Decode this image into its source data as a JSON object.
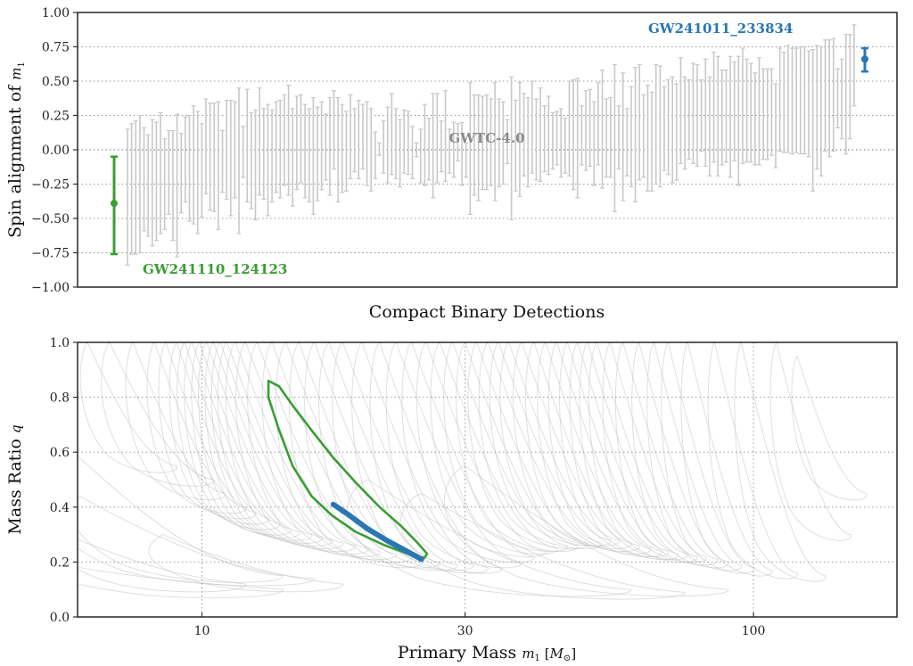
{
  "chart_data": [
    {
      "type": "scatter",
      "subtype": "errorbar",
      "title": "",
      "xlabel": "Compact Binary Detections",
      "ylabel": "Spin alignment of",
      "ylabel_symbol": "m",
      "ylabel_sub": "1",
      "ylim": [
        -1.0,
        1.0
      ],
      "yticks": [
        "−1.00",
        "−0.75",
        "−0.50",
        "−0.25",
        "0.00",
        "0.25",
        "0.50",
        "0.75",
        "1.00"
      ],
      "ytick_values": [
        -1.0,
        -0.75,
        -0.5,
        -0.25,
        0.0,
        0.25,
        0.5,
        0.75,
        1.0
      ],
      "grid": "horizontal-dotted",
      "catalog_label": "GWTC-4.0",
      "catalog_color": "#c8c8c8",
      "highlight_low": {
        "name": "GW241110_124123",
        "color": "#3a9c35",
        "median": -0.39,
        "interval": [
          -0.76,
          -0.05
        ]
      },
      "highlight_high": {
        "name": "GW241011_233834",
        "color": "#2a76b4",
        "median": 0.66,
        "interval": [
          0.57,
          0.74
        ]
      },
      "catalog_intervals": [
        [
          -0.84,
          0.15
        ],
        [
          -0.76,
          0.19
        ],
        [
          -0.76,
          0.21
        ],
        [
          -0.75,
          0.25
        ],
        [
          -0.59,
          0.16
        ],
        [
          -0.63,
          0.11
        ],
        [
          -0.7,
          0.22
        ],
        [
          -0.66,
          0.2
        ],
        [
          -0.61,
          0.27
        ],
        [
          -0.58,
          0.08
        ],
        [
          -0.47,
          0.14
        ],
        [
          -0.66,
          0.14
        ],
        [
          -0.78,
          0.26
        ],
        [
          -0.46,
          0.12
        ],
        [
          -0.38,
          0.24
        ],
        [
          -0.52,
          0.25
        ],
        [
          -0.54,
          0.32
        ],
        [
          -0.61,
          0.28
        ],
        [
          -0.49,
          0.19
        ],
        [
          -0.32,
          0.37
        ],
        [
          -0.44,
          0.34
        ],
        [
          -0.45,
          0.34
        ],
        [
          -0.58,
          0.35
        ],
        [
          -0.31,
          0.14
        ],
        [
          -0.36,
          0.36
        ],
        [
          -0.48,
          0.36
        ],
        [
          -0.35,
          0.35
        ],
        [
          -0.61,
          0.45
        ],
        [
          -0.2,
          0.17
        ],
        [
          -0.38,
          0.44
        ],
        [
          -0.43,
          0.27
        ],
        [
          -0.51,
          0.29
        ],
        [
          -0.33,
          0.45
        ],
        [
          -0.36,
          0.3
        ],
        [
          -0.48,
          0.33
        ],
        [
          -0.38,
          0.29
        ],
        [
          -0.31,
          0.35
        ],
        [
          -0.35,
          0.36
        ],
        [
          -0.26,
          0.4
        ],
        [
          -0.33,
          0.47
        ],
        [
          -0.41,
          0.3
        ],
        [
          -0.29,
          0.39
        ],
        [
          -0.24,
          0.4
        ],
        [
          -0.35,
          0.33
        ],
        [
          -0.38,
          0.3
        ],
        [
          -0.47,
          0.38
        ],
        [
          -0.37,
          0.31
        ],
        [
          -0.29,
          0.35
        ],
        [
          -0.22,
          0.26
        ],
        [
          -0.33,
          0.38
        ],
        [
          -0.14,
          0.43
        ],
        [
          -0.38,
          0.38
        ],
        [
          -0.31,
          0.33
        ],
        [
          -0.3,
          0.28
        ],
        [
          -0.21,
          0.4
        ],
        [
          -0.16,
          0.3
        ],
        [
          -0.21,
          0.36
        ],
        [
          -0.14,
          0.33
        ],
        [
          -0.26,
          0.35
        ],
        [
          -0.3,
          0.3
        ],
        [
          -0.21,
          0.13
        ],
        [
          -0.04,
          0.05
        ],
        [
          -0.17,
          0.21
        ],
        [
          -0.24,
          0.31
        ],
        [
          -0.18,
          0.41
        ],
        [
          -0.21,
          0.3
        ],
        [
          -0.27,
          0.22
        ],
        [
          -0.17,
          0.29
        ],
        [
          -0.18,
          0.28
        ],
        [
          -0.21,
          0.17
        ],
        [
          -0.05,
          0.05
        ],
        [
          -0.24,
          0.15
        ],
        [
          -0.26,
          0.33
        ],
        [
          -0.22,
          0.23
        ],
        [
          -0.35,
          0.41
        ],
        [
          -0.24,
          0.41
        ],
        [
          -0.16,
          0.21
        ],
        [
          -0.23,
          0.43
        ],
        [
          -0.17,
          0.15
        ],
        [
          -0.2,
          0.2
        ],
        [
          -0.08,
          0.19
        ],
        [
          -0.26,
          0.2
        ],
        [
          -0.2,
          0.05
        ],
        [
          -0.47,
          0.49
        ],
        [
          -0.33,
          0.4
        ],
        [
          -0.37,
          0.4
        ],
        [
          -0.29,
          0.39
        ],
        [
          -0.29,
          0.4
        ],
        [
          -0.26,
          0.37
        ],
        [
          -0.37,
          0.49
        ],
        [
          -0.27,
          0.37
        ],
        [
          -0.25,
          0.35
        ],
        [
          -0.1,
          0.22
        ],
        [
          -0.51,
          0.53
        ],
        [
          -0.3,
          0.36
        ],
        [
          -0.34,
          0.49
        ],
        [
          -0.19,
          0.41
        ],
        [
          -0.27,
          0.38
        ],
        [
          -0.17,
          0.5
        ],
        [
          -0.22,
          0.37
        ],
        [
          -0.23,
          0.45
        ],
        [
          -0.16,
          0.32
        ],
        [
          -0.18,
          0.39
        ],
        [
          -0.14,
          0.27
        ],
        [
          -0.11,
          0.28
        ],
        [
          -0.2,
          0.3
        ],
        [
          -0.17,
          0.23
        ],
        [
          -0.19,
          0.5
        ],
        [
          -0.29,
          0.51
        ],
        [
          -0.35,
          0.52
        ],
        [
          -0.11,
          0.32
        ],
        [
          -0.15,
          0.43
        ],
        [
          -0.12,
          0.44
        ],
        [
          -0.26,
          0.35
        ],
        [
          -0.11,
          0.49
        ],
        [
          -0.28,
          0.58
        ],
        [
          -0.2,
          0.37
        ],
        [
          -0.2,
          0.38
        ],
        [
          -0.45,
          0.62
        ],
        [
          -0.14,
          0.32
        ],
        [
          -0.37,
          0.56
        ],
        [
          -0.19,
          0.3
        ],
        [
          -0.27,
          0.46
        ],
        [
          -0.38,
          0.6
        ],
        [
          -0.22,
          0.62
        ],
        [
          -0.2,
          0.4
        ],
        [
          -0.3,
          0.47
        ],
        [
          -0.3,
          0.42
        ],
        [
          -0.25,
          0.62
        ],
        [
          -0.27,
          0.61
        ],
        [
          -0.15,
          0.46
        ],
        [
          -0.18,
          0.51
        ],
        [
          -0.24,
          0.53
        ],
        [
          -0.22,
          0.48
        ],
        [
          -0.1,
          0.67
        ],
        [
          -0.14,
          0.53
        ],
        [
          -0.07,
          0.51
        ],
        [
          -0.1,
          0.63
        ],
        [
          -0.12,
          0.62
        ],
        [
          -0.01,
          0.51
        ],
        [
          -0.12,
          0.66
        ],
        [
          -0.19,
          0.53
        ],
        [
          -0.09,
          0.71
        ],
        [
          -0.19,
          0.68
        ],
        [
          -0.11,
          0.58
        ],
        [
          -0.09,
          0.58
        ],
        [
          -0.2,
          0.68
        ],
        [
          -0.08,
          0.64
        ],
        [
          -0.26,
          0.68
        ],
        [
          -0.1,
          0.74
        ],
        [
          -0.09,
          0.66
        ],
        [
          -0.09,
          0.63
        ],
        [
          -0.11,
          0.56
        ],
        [
          -0.11,
          0.67
        ],
        [
          -0.07,
          0.59
        ],
        [
          -0.07,
          0.59
        ],
        [
          -0.04,
          0.59
        ],
        [
          -0.13,
          0.48
        ],
        [
          -0.01,
          0.74
        ],
        [
          -0.02,
          0.71
        ],
        [
          -0.02,
          0.76
        ],
        [
          -0.03,
          0.74
        ],
        [
          -0.02,
          0.74
        ],
        [
          -0.03,
          0.75
        ],
        [
          -0.03,
          0.75
        ],
        [
          -0.05,
          0.72
        ],
        [
          -0.3,
          0.73
        ],
        [
          -0.14,
          0.76
        ],
        [
          -0.19,
          0.75
        ],
        [
          -0.01,
          0.8
        ],
        [
          -0.05,
          0.8
        ],
        [
          -0.01,
          0.81
        ],
        [
          0.16,
          0.59
        ],
        [
          0.08,
          0.66
        ],
        [
          -0.03,
          0.84
        ],
        [
          0.08,
          0.84
        ],
        [
          0.32,
          0.91
        ]
      ]
    },
    {
      "type": "contour",
      "title": "",
      "xlabel": "Primary Mass",
      "xlabel_symbol": "m",
      "xlabel_sub": "1",
      "xlabel_unit_open": "[",
      "xlabel_unit_symbol": "M",
      "xlabel_unit_sub": "⊙",
      "xlabel_unit_close": "]",
      "ylabel": "Mass Ratio",
      "ylabel_symbol": "q",
      "xscale": "log",
      "xlim": [
        5.95,
        182
      ],
      "ylim": [
        0.0,
        1.0
      ],
      "xticks": [
        "10",
        "30",
        "100"
      ],
      "xtick_values": [
        10,
        30,
        100
      ],
      "yticks": [
        "0.0",
        "0.2",
        "0.4",
        "0.6",
        "0.8",
        "1.0"
      ],
      "ytick_values": [
        0.0,
        0.2,
        0.4,
        0.6,
        0.8,
        1.0
      ],
      "grid": "dotted",
      "highlight_low": {
        "name": "GW241110_124123",
        "color": "#3a9c35",
        "contour": [
          [
            13.2,
            0.86
          ],
          [
            13.8,
            0.84
          ],
          [
            14.6,
            0.77
          ],
          [
            15.8,
            0.68
          ],
          [
            17.3,
            0.58
          ],
          [
            19,
            0.49
          ],
          [
            21,
            0.4
          ],
          [
            23,
            0.33
          ],
          [
            24.6,
            0.27
          ],
          [
            25.6,
            0.23
          ],
          [
            25.3,
            0.215
          ],
          [
            24,
            0.225
          ],
          [
            21.5,
            0.26
          ],
          [
            19,
            0.31
          ],
          [
            17.2,
            0.37
          ],
          [
            15.8,
            0.44
          ],
          [
            14.6,
            0.55
          ],
          [
            13.8,
            0.68
          ],
          [
            13.2,
            0.8
          ],
          [
            13.2,
            0.86
          ]
        ]
      },
      "highlight_high": {
        "name": "GW241011_233834",
        "color": "#2a76b4",
        "contour": [
          [
            17.3,
            0.41
          ],
          [
            18.5,
            0.37
          ],
          [
            20,
            0.32
          ],
          [
            21.8,
            0.275
          ],
          [
            23.5,
            0.24
          ],
          [
            25,
            0.21
          ]
        ]
      },
      "catalog_color": "#c4c4c4",
      "catalog_contours": [
        [
          6.2,
          1.0,
          9,
          0.55
        ],
        [
          6.8,
          1.0,
          10.5,
          0.5
        ],
        [
          7.5,
          1.0,
          11,
          0.45
        ],
        [
          8.2,
          1.0,
          12,
          0.4
        ],
        [
          8.6,
          1.0,
          12.5,
          0.38
        ],
        [
          9.0,
          1.0,
          13.2,
          0.36
        ],
        [
          9.3,
          1.0,
          13.8,
          0.34
        ],
        [
          9.6,
          1.0,
          14.5,
          0.32
        ],
        [
          9.9,
          1.0,
          15,
          0.31
        ],
        [
          10.2,
          1.0,
          15.8,
          0.3
        ],
        [
          10.5,
          1.0,
          16.5,
          0.29
        ],
        [
          10.8,
          1.0,
          17.2,
          0.28
        ],
        [
          11.1,
          1.0,
          18,
          0.27
        ],
        [
          11.5,
          1.0,
          19,
          0.26
        ],
        [
          12,
          1.0,
          20,
          0.25
        ],
        [
          12.6,
          1.0,
          21,
          0.24
        ],
        [
          13.4,
          1.0,
          22.5,
          0.23
        ],
        [
          14.2,
          1.0,
          24,
          0.22
        ],
        [
          15,
          1.0,
          25,
          0.2
        ],
        [
          16,
          1.0,
          27,
          0.2
        ],
        [
          17,
          1.0,
          29,
          0.19
        ],
        [
          18,
          1.0,
          31,
          0.19
        ],
        [
          19.5,
          1.0,
          33,
          0.18
        ],
        [
          21,
          1.0,
          35,
          0.18
        ],
        [
          22.5,
          1.0,
          38,
          0.2
        ],
        [
          24,
          1.0,
          40,
          0.22
        ],
        [
          25.5,
          1.0,
          42,
          0.24
        ],
        [
          27,
          1.0,
          44,
          0.25
        ],
        [
          28.5,
          1.0,
          46,
          0.26
        ],
        [
          30,
          1.0,
          48,
          0.26
        ],
        [
          31.5,
          1.0,
          50,
          0.27
        ],
        [
          33,
          1.0,
          53,
          0.27
        ],
        [
          34.5,
          1.0,
          55,
          0.28
        ],
        [
          36,
          1.0,
          57,
          0.28
        ],
        [
          38,
          1.0,
          60,
          0.27
        ],
        [
          40,
          1.0,
          62,
          0.26
        ],
        [
          42,
          1.0,
          65,
          0.25
        ],
        [
          44,
          1.0,
          68,
          0.24
        ],
        [
          46,
          1.0,
          70,
          0.24
        ],
        [
          48,
          1.0,
          73,
          0.23
        ],
        [
          50,
          1.0,
          76,
          0.23
        ],
        [
          52,
          1.0,
          79,
          0.22
        ],
        [
          55,
          1.0,
          82,
          0.22
        ],
        [
          58,
          1.0,
          86,
          0.21
        ],
        [
          62,
          1.0,
          90,
          0.2
        ],
        [
          66,
          1.0,
          95,
          0.19
        ],
        [
          70,
          1.0,
          100,
          0.18
        ],
        [
          76,
          1.0,
          108,
          0.17
        ],
        [
          85,
          1.0,
          120,
          0.16
        ],
        [
          95,
          1.0,
          135,
          0.15
        ],
        [
          6.0,
          0.58,
          14,
          0.15
        ],
        [
          6.0,
          0.44,
          16,
          0.14
        ],
        [
          6.0,
          0.28,
          12,
          0.12
        ],
        [
          6.0,
          0.18,
          14,
          0.1
        ],
        [
          8.5,
          0.3,
          18,
          0.12
        ],
        [
          20,
          0.5,
          60,
          0.1
        ],
        [
          25,
          0.45,
          75,
          0.09
        ],
        [
          30,
          0.55,
          90,
          0.1
        ],
        [
          110,
          1.0,
          150,
          0.3
        ],
        [
          120,
          0.95,
          160,
          0.45
        ]
      ]
    }
  ]
}
